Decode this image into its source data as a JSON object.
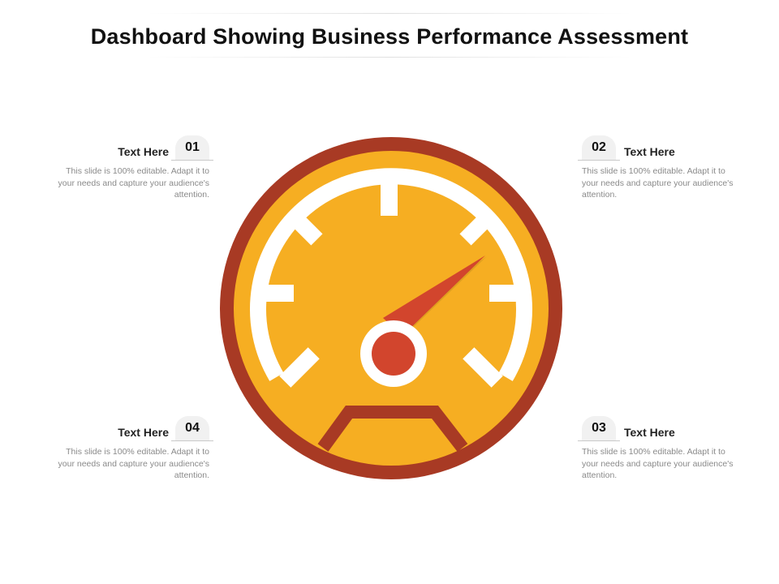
{
  "title": "Dashboard Showing Business Performance Assessment",
  "callouts": [
    {
      "number": "01",
      "heading": "Text Here",
      "text": "This slide is 100% editable. Adapt it to your needs and capture your audience's attention."
    },
    {
      "number": "02",
      "heading": "Text Here",
      "text": "This slide is 100% editable. Adapt it to your needs and capture your audience's attention."
    },
    {
      "number": "03",
      "heading": "Text Here",
      "text": "This slide is 100% editable. Adapt it to your needs and capture your audience's attention."
    },
    {
      "number": "04",
      "heading": "Text Here",
      "text": "This slide is 100% editable. Adapt it to your needs and capture your audience's attention."
    }
  ],
  "gauge": {
    "icon": "speedometer-icon",
    "colors": {
      "outer_ring": "#a83a24",
      "face": "#f6ae22",
      "ticks": "#ffffff",
      "needle": "#d2452d"
    }
  }
}
